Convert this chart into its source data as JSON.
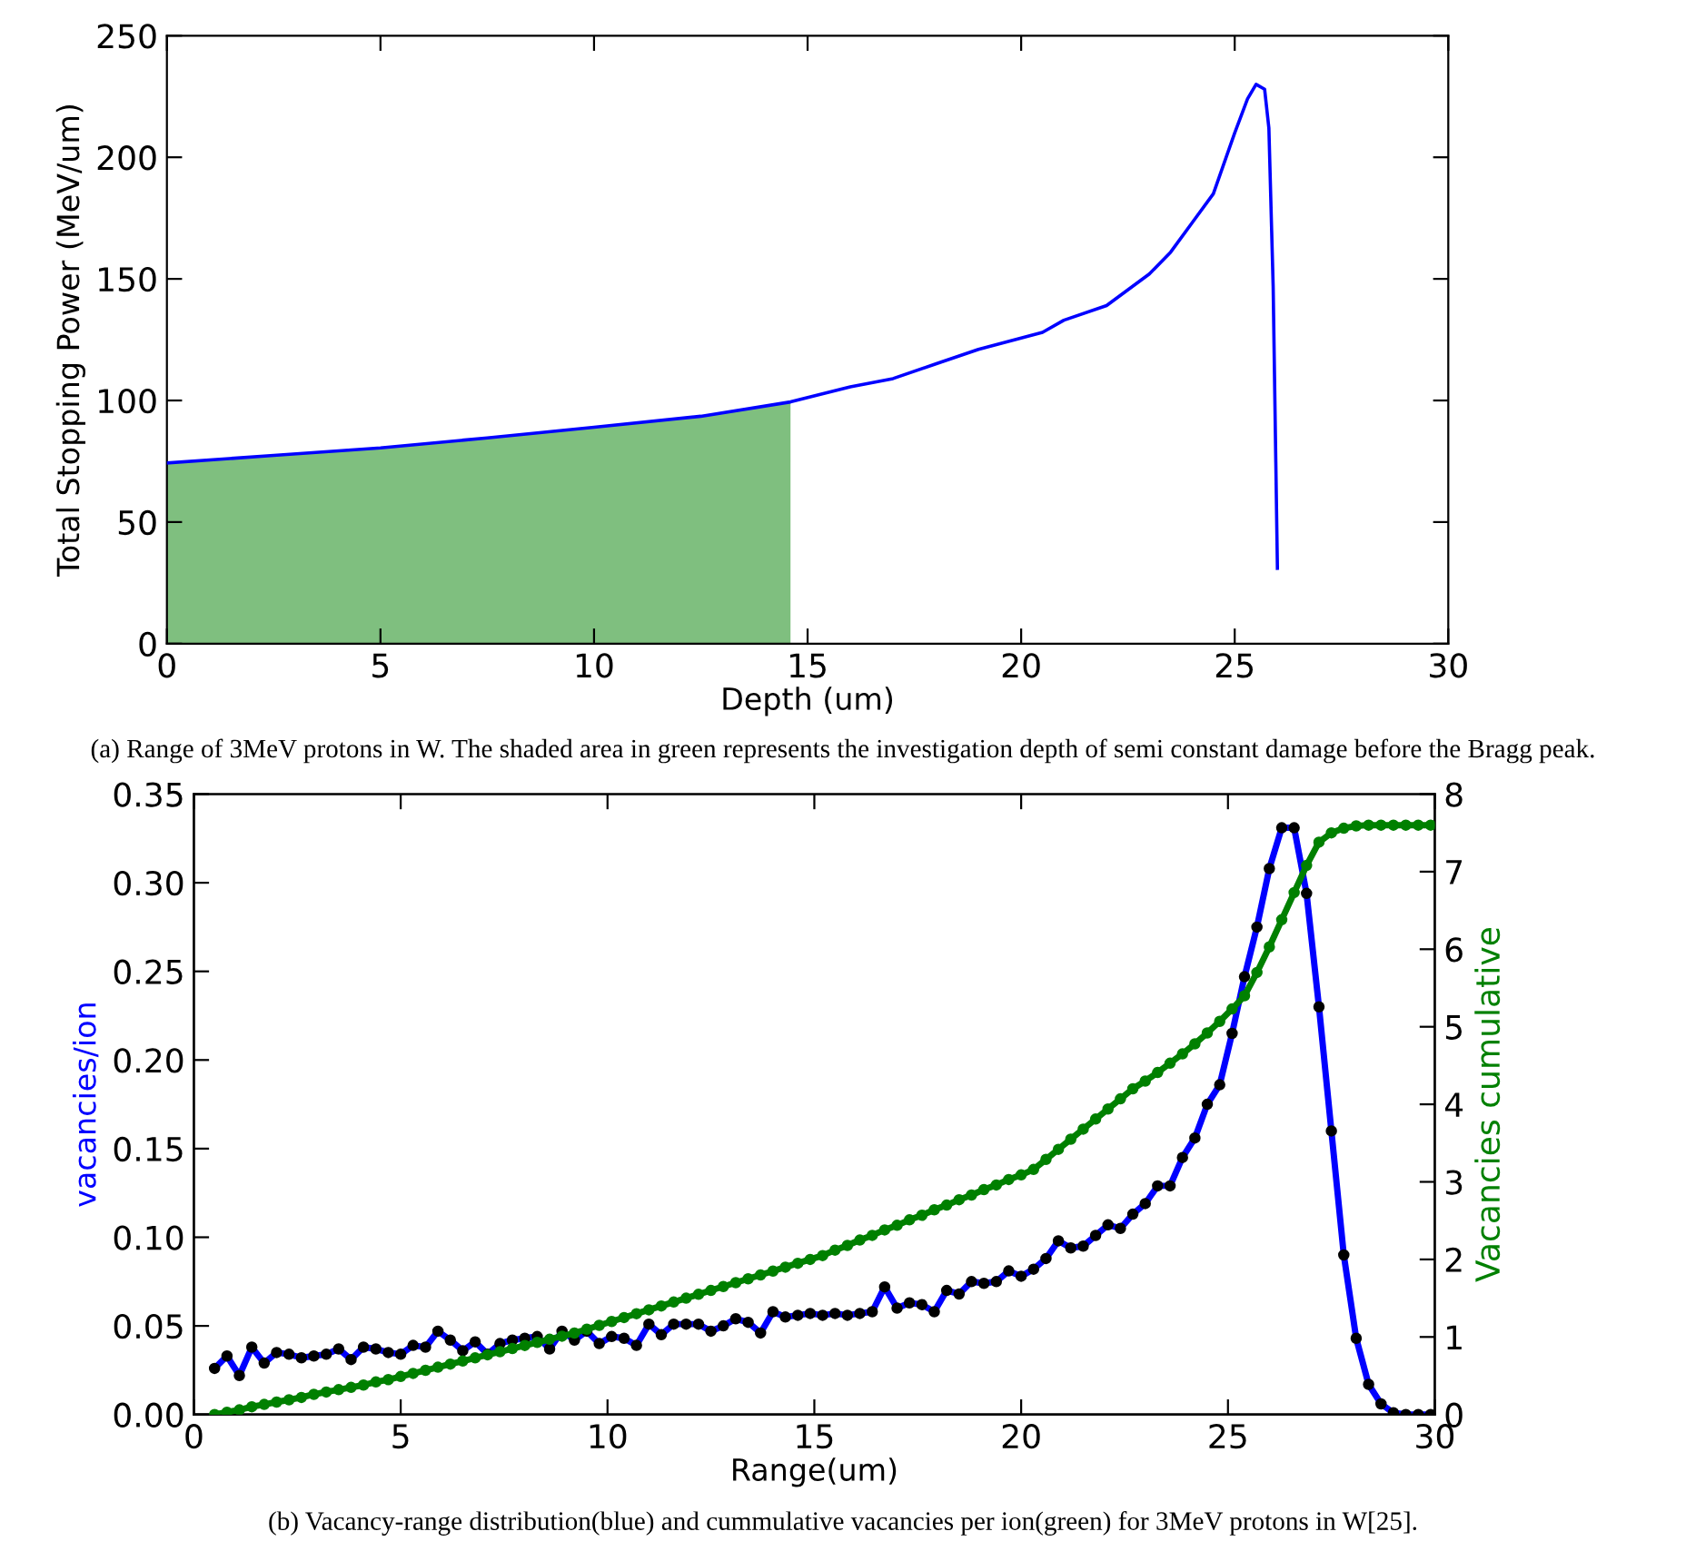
{
  "chart_data": [
    {
      "type": "line",
      "xlabel": "Depth (um)",
      "ylabel": "Total Stopping Power (MeV/um)",
      "xlim": [
        0,
        30
      ],
      "xticks": [
        0,
        5,
        10,
        15,
        20,
        25,
        30
      ],
      "ylim": [
        0,
        250
      ],
      "yticks": [
        0,
        50,
        100,
        150,
        200,
        250
      ],
      "grid": false,
      "series": [
        {
          "type": "area",
          "color": "#7fbf7f",
          "x": [
            0,
            2.5,
            5,
            7.5,
            10,
            12.5,
            14.6
          ],
          "values": [
            74.3,
            77.4,
            80.5,
            84.6,
            89,
            93.5,
            99.4
          ]
        },
        {
          "type": "line",
          "color": "#0000ff",
          "x": [
            0,
            2.5,
            5,
            7.5,
            10,
            12.5,
            14.6,
            16,
            17,
            18,
            19,
            20.5,
            21,
            22,
            23,
            23.5,
            24,
            24.5,
            24.8,
            25,
            25.3,
            25.5,
            25.7,
            25.8,
            25.9,
            26
          ],
          "values": [
            74.3,
            77.4,
            80.5,
            84.6,
            89,
            93.5,
            99.4,
            105.6,
            109,
            115,
            121,
            128,
            133,
            139,
            152,
            161,
            173,
            185,
            200,
            210,
            224,
            230,
            228,
            212,
            147,
            31
          ]
        }
      ],
      "annotations": [
        "(a) Range of 3MeV protons in W. The shaded area in green represents the investigation depth of semi constant damage before the Bragg peak."
      ]
    },
    {
      "type": "line",
      "xlabel": "Range(um)",
      "ylabel": "vacancies/ion",
      "y2label": "Vacancies cumulative",
      "xlim": [
        0,
        30
      ],
      "xticks": [
        0,
        5,
        10,
        15,
        20,
        25,
        30
      ],
      "ylim": [
        0,
        0.35
      ],
      "yticks": [
        {
          "value": 0,
          "label": "0.00"
        },
        {
          "value": 0.05,
          "label": "0.05"
        },
        {
          "value": 0.1,
          "label": "0.10"
        },
        {
          "value": 0.15,
          "label": "0.15"
        },
        {
          "value": 0.2,
          "label": "0.20"
        },
        {
          "value": 0.25,
          "label": "0.25"
        },
        {
          "value": 0.3,
          "label": "0.30"
        },
        {
          "value": 0.35,
          "label": "0.35"
        }
      ],
      "y2lim": [
        0,
        8
      ],
      "y2ticks": [
        0,
        1,
        2,
        3,
        4,
        5,
        6,
        7,
        8
      ],
      "grid": false,
      "marker": "circle",
      "x": [
        0.5,
        0.8,
        1.1,
        1.4,
        1.7,
        2.0,
        2.3,
        2.6,
        2.9,
        3.2,
        3.5,
        3.8,
        4.1,
        4.4,
        4.7,
        5.0,
        5.3,
        5.6,
        5.9,
        6.2,
        6.5,
        6.8,
        7.1,
        7.4,
        7.7,
        8.0,
        8.3,
        8.6,
        8.9,
        9.2,
        9.5,
        9.8,
        10.1,
        10.4,
        10.7,
        11.0,
        11.3,
        11.6,
        11.9,
        12.2,
        12.5,
        12.8,
        13.1,
        13.4,
        13.7,
        14.0,
        14.3,
        14.6,
        14.9,
        15.2,
        15.5,
        15.8,
        16.1,
        16.4,
        16.7,
        17.0,
        17.3,
        17.6,
        17.9,
        18.2,
        18.5,
        18.8,
        19.1,
        19.4,
        19.7,
        20.0,
        20.3,
        20.6,
        20.9,
        21.2,
        21.5,
        21.8,
        22.1,
        22.4,
        22.7,
        23.0,
        23.3,
        23.6,
        23.9,
        24.2,
        24.5,
        24.8,
        25.1,
        25.4,
        25.7,
        26.0,
        26.3,
        26.6,
        26.9,
        27.2,
        27.5,
        27.8,
        28.1,
        28.4,
        28.7,
        29.0,
        29.3,
        29.6,
        29.9
      ],
      "series": [
        {
          "type": "line",
          "color": "#0000ff",
          "values": [
            0.026,
            0.033,
            0.022,
            0.038,
            0.029,
            0.035,
            0.034,
            0.032,
            0.033,
            0.034,
            0.037,
            0.031,
            0.038,
            0.037,
            0.035,
            0.034,
            0.039,
            0.038,
            0.047,
            0.042,
            0.036,
            0.041,
            0.034,
            0.04,
            0.042,
            0.043,
            0.044,
            0.037,
            0.047,
            0.042,
            0.047,
            0.04,
            0.044,
            0.043,
            0.039,
            0.051,
            0.045,
            0.051,
            0.051,
            0.051,
            0.047,
            0.05,
            0.054,
            0.052,
            0.046,
            0.058,
            0.055,
            0.056,
            0.057,
            0.056,
            0.057,
            0.056,
            0.057,
            0.058,
            0.072,
            0.06,
            0.063,
            0.062,
            0.058,
            0.07,
            0.068,
            0.075,
            0.074,
            0.075,
            0.081,
            0.078,
            0.082,
            0.088,
            0.098,
            0.094,
            0.095,
            0.101,
            0.107,
            0.105,
            0.113,
            0.119,
            0.129,
            0.129,
            0.145,
            0.156,
            0.175,
            0.186,
            0.215,
            0.247,
            0.275,
            0.308,
            0.331,
            0.331,
            0.294,
            0.23,
            0.16,
            0.09,
            0.043,
            0.017,
            0.006,
            0.001,
            0,
            0,
            0
          ]
        },
        {
          "type": "line",
          "color": "#008000",
          "axis": "y2",
          "values": [
            0,
            0.03,
            0.06,
            0.1,
            0.13,
            0.16,
            0.19,
            0.22,
            0.26,
            0.29,
            0.32,
            0.35,
            0.38,
            0.42,
            0.45,
            0.49,
            0.53,
            0.57,
            0.61,
            0.65,
            0.69,
            0.73,
            0.77,
            0.81,
            0.85,
            0.89,
            0.93,
            0.97,
            1.01,
            1.05,
            1.1,
            1.15,
            1.2,
            1.25,
            1.3,
            1.35,
            1.4,
            1.45,
            1.5,
            1.55,
            1.6,
            1.65,
            1.7,
            1.75,
            1.8,
            1.85,
            1.9,
            1.95,
            2.0,
            2.05,
            2.12,
            2.18,
            2.25,
            2.31,
            2.38,
            2.44,
            2.51,
            2.57,
            2.64,
            2.7,
            2.77,
            2.83,
            2.9,
            2.96,
            3.03,
            3.09,
            3.16,
            3.29,
            3.42,
            3.55,
            3.68,
            3.81,
            3.94,
            4.07,
            4.2,
            4.3,
            4.41,
            4.53,
            4.65,
            4.78,
            4.92,
            5.07,
            5.23,
            5.4,
            5.7,
            6.03,
            6.38,
            6.73,
            7.08,
            7.38,
            7.5,
            7.56,
            7.59,
            7.6,
            7.6,
            7.6,
            7.6,
            7.6,
            7.6
          ]
        }
      ],
      "annotations": [
        "(b) Vacancy-range distribution(blue) and cummulative vacancies per ion(green) for 3MeV protons in W[25]."
      ]
    }
  ]
}
